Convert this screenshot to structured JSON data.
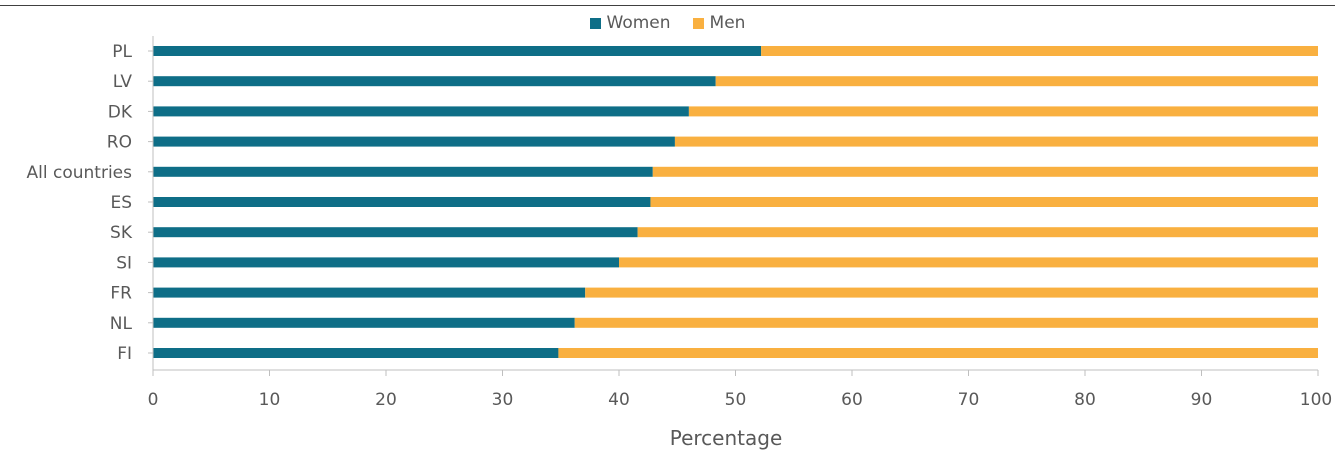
{
  "chart_data": {
    "type": "bar",
    "orientation": "horizontal",
    "stacked": true,
    "categories": [
      "PL",
      "LV",
      "DK",
      "RO",
      "All countries",
      "ES",
      "SK",
      "SI",
      "FR",
      "NL",
      "FI"
    ],
    "series": [
      {
        "name": "Women",
        "color": "#0e6e87",
        "values": [
          52.2,
          48.3,
          46.0,
          44.8,
          42.9,
          42.7,
          41.6,
          40.0,
          37.1,
          36.2,
          34.8
        ]
      },
      {
        "name": "Men",
        "color": "#f9b040",
        "values": [
          47.8,
          51.7,
          54.0,
          55.2,
          57.1,
          57.3,
          58.4,
          60.0,
          62.9,
          63.8,
          65.2
        ]
      }
    ],
    "xlabel": "Percentage",
    "ylabel": "",
    "xlim": [
      0,
      100
    ],
    "xticks": [
      "0",
      "10",
      "20",
      "30",
      "40",
      "50",
      "60",
      "70",
      "80",
      "90",
      "100"
    ],
    "legend_position": "top-center",
    "grid": false
  }
}
